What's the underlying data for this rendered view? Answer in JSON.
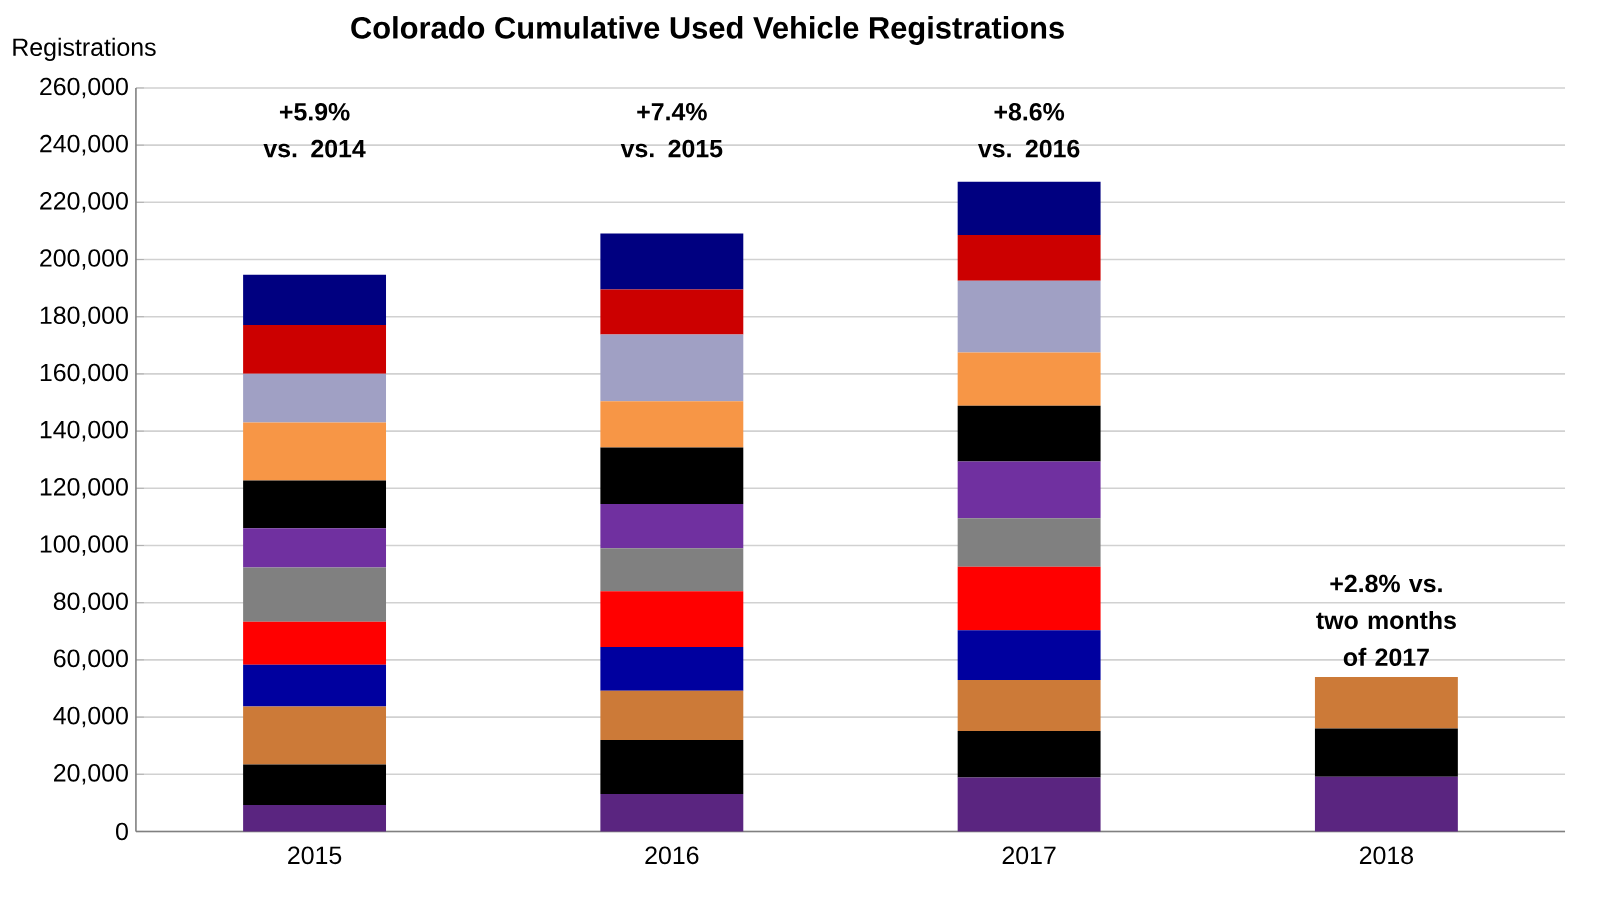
{
  "chart_data": {
    "type": "bar",
    "stacked": true,
    "title": "Colorado Cumulative Used Vehicle Registrations",
    "ylabel": "Registrations",
    "categories": [
      "2015",
      "2016",
      "2017",
      "2018"
    ],
    "series": [
      {
        "color": "#5a2580",
        "values": [
          9300,
          13100,
          18900,
          19100
        ]
      },
      {
        "color": "#000000",
        "values": [
          14100,
          18900,
          16200,
          16900
        ]
      },
      {
        "color": "#cc7a38",
        "values": [
          20300,
          17200,
          17900,
          18000
        ]
      },
      {
        "color": "#00009f",
        "values": [
          14600,
          15300,
          17400,
          null
        ]
      },
      {
        "color": "#ff0000",
        "values": [
          15000,
          19500,
          22200,
          null
        ]
      },
      {
        "color": "#808080",
        "values": [
          19000,
          15000,
          16900,
          null
        ]
      },
      {
        "color": "#7030a0",
        "values": [
          13700,
          15500,
          19900,
          null
        ]
      },
      {
        "color": "#000000",
        "values": [
          16700,
          19800,
          19500,
          null
        ]
      },
      {
        "color": "#f79646",
        "values": [
          20300,
          16100,
          18600,
          null
        ]
      },
      {
        "color": "#a0a0c4",
        "values": [
          17100,
          23400,
          25100,
          null
        ]
      },
      {
        "color": "#cc0000",
        "values": [
          17000,
          15700,
          16000,
          null
        ]
      },
      {
        "color": "#000080",
        "values": [
          17600,
          19600,
          18600,
          null
        ]
      }
    ],
    "ylim": [
      0,
      260000
    ],
    "yticks": [
      {
        "value": 0,
        "label": "0"
      },
      {
        "value": 20000,
        "label": "20,000"
      },
      {
        "value": 40000,
        "label": "40,000"
      },
      {
        "value": 60000,
        "label": "60,000"
      },
      {
        "value": 80000,
        "label": "80,000"
      },
      {
        "value": 100000,
        "label": "100,000"
      },
      {
        "value": 120000,
        "label": "120,000"
      },
      {
        "value": 140000,
        "label": "140,000"
      },
      {
        "value": 160000,
        "label": "160,000"
      },
      {
        "value": 180000,
        "label": "180,000"
      },
      {
        "value": 200000,
        "label": "200,000"
      },
      {
        "value": 220000,
        "label": "220,000"
      },
      {
        "value": 240000,
        "label": "240,000"
      },
      {
        "value": 260000,
        "label": "260,000"
      }
    ],
    "grid": "y",
    "annotations": [
      "+5.9% vs. 2014",
      "+7.4% vs. 2015",
      "+8.6% vs. 2016",
      "+2.8% vs. two months of 2017"
    ]
  }
}
